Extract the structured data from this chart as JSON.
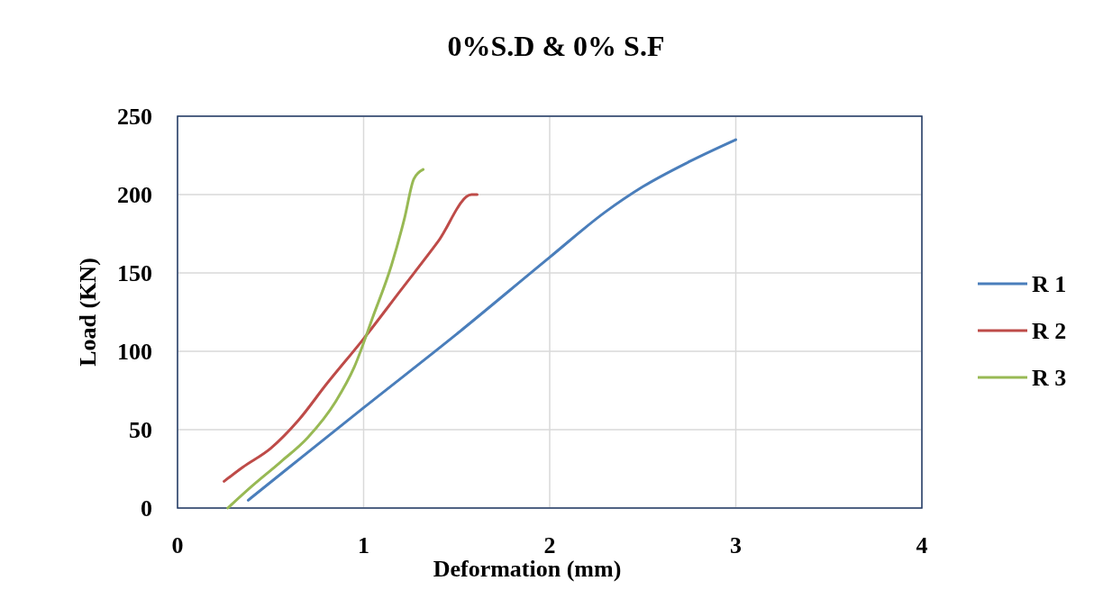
{
  "chart_data": {
    "type": "line",
    "title": "0%S.D & 0% S.F",
    "xlabel": "Deformation (mm)",
    "ylabel": "Load (KN)",
    "xlim": [
      0,
      4
    ],
    "xticks": [
      0,
      1,
      2,
      3,
      4
    ],
    "ylim": [
      0,
      250
    ],
    "yticks": [
      0,
      50,
      100,
      150,
      200,
      250
    ],
    "grid": true,
    "legend": "right",
    "marker": "none",
    "line_style": "solid",
    "series": [
      {
        "name": "R 1",
        "color": "#4a7ebb",
        "x": [
          0.38,
          0.6,
          1.0,
          1.5,
          2.0,
          2.3,
          2.5,
          2.75,
          3.0
        ],
        "values": [
          5,
          26,
          64,
          111,
          160,
          189,
          205,
          221,
          235
        ]
      },
      {
        "name": "R 2",
        "color": "#be4b48",
        "x": [
          0.25,
          0.35,
          0.5,
          0.65,
          0.8,
          1.0,
          1.2,
          1.4,
          1.58,
          1.61
        ],
        "values": [
          17,
          26,
          38,
          56,
          79,
          108,
          139,
          170,
          200,
          200
        ]
      },
      {
        "name": "R 3",
        "color": "#98b954",
        "x": [
          0.27,
          0.4,
          0.55,
          0.7,
          0.85,
          0.95,
          1.05,
          1.15,
          1.22,
          1.27,
          1.32
        ],
        "values": [
          0,
          14,
          29,
          45,
          68,
          90,
          122,
          155,
          185,
          210,
          216
        ]
      }
    ]
  }
}
